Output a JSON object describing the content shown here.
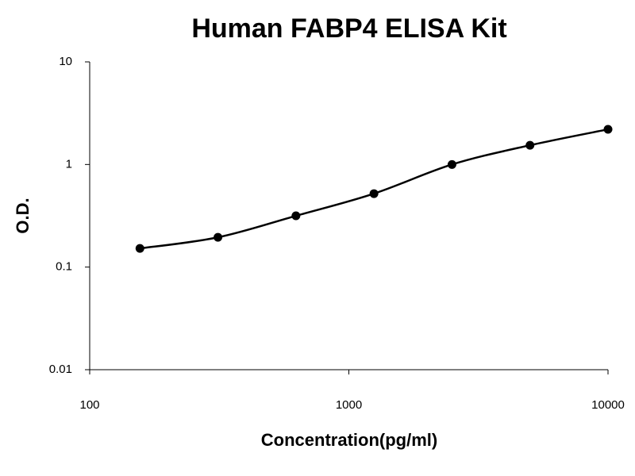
{
  "chart_data": {
    "type": "scatter",
    "title": "Human FABP4 ELISA Kit",
    "x_label": "Concentration(pg/ml)",
    "y_label": "O.D.",
    "x": [
      156.25,
      312.5,
      625,
      1250,
      2500,
      5000,
      10000
    ],
    "series": [
      {
        "color": "#000000",
        "values": [
          0.152,
          0.195,
          0.316,
          0.52,
          1.0,
          1.54,
          2.2
        ]
      }
    ],
    "xlim": [
      100,
      10000
    ],
    "ylim": [
      0.01,
      10
    ],
    "xticks": [
      100,
      1000,
      10000
    ],
    "yticks": [
      0.01,
      0.1,
      1,
      10
    ],
    "xscale": "log",
    "yscale": "log",
    "grid": false,
    "fit_curve": true
  }
}
